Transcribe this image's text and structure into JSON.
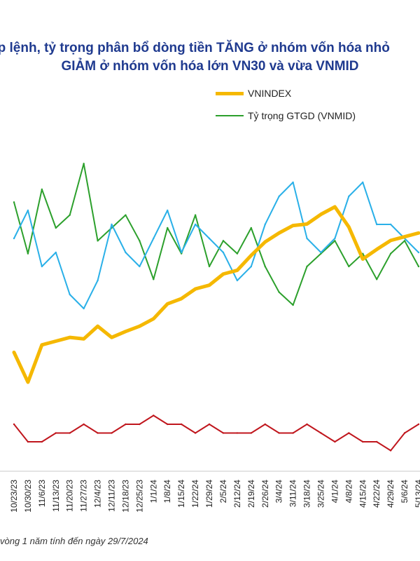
{
  "title": {
    "line1": "ớp lệnh, tỷ trọng phân bổ dòng tiền TĂNG ở nhóm vốn hóa nhỏ",
    "line2": "GIẢM ở nhóm vốn hóa lớn VN30 và vừa VNMID"
  },
  "footnote": "vòng 1 năm tính đến ngày 29/7/2024",
  "colors": {
    "vnindex": "#f5b800",
    "vnmid": "#2ca02c",
    "vn30": "#2ab0e8",
    "smallcap": "#c0161d"
  },
  "chart_data": {
    "type": "line",
    "legend_position": "top-right",
    "grid": false,
    "x": [
      "10/23/23",
      "10/30/23",
      "11/6/23",
      "11/13/23",
      "11/20/23",
      "11/27/23",
      "12/4/23",
      "12/11/23",
      "12/18/23",
      "12/25/23",
      "1/1/24",
      "1/8/24",
      "1/15/24",
      "1/22/24",
      "1/29/24",
      "2/5/24",
      "2/12/24",
      "2/19/24",
      "2/26/24",
      "3/4/24",
      "3/11/24",
      "3/18/24",
      "3/25/24",
      "4/1/24",
      "4/8/24",
      "4/15/24",
      "4/22/24",
      "4/29/24",
      "5/6/24",
      "5/13/24"
    ],
    "series": [
      {
        "name": "VNINDEX",
        "values": [
          1090,
          1050,
          1100,
          1105,
          1110,
          1108,
          1125,
          1110,
          1118,
          1125,
          1135,
          1155,
          1162,
          1175,
          1180,
          1195,
          1200,
          1220,
          1238,
          1250,
          1260,
          1262,
          1275,
          1285,
          1258,
          1215,
          1228,
          1240,
          1245,
          1250
        ]
      },
      {
        "name": "Tỷ trọng GTGD (VNMID)",
        "values": [
          39,
          35,
          40,
          37,
          38,
          42,
          36,
          37,
          38,
          36,
          33,
          37,
          35,
          38,
          34,
          36,
          35,
          37,
          34,
          32,
          31,
          34,
          35,
          36,
          34,
          35,
          33,
          35,
          36,
          34
        ]
      },
      {
        "name": "",
        "values": [
          44,
          46,
          42,
          43,
          40,
          39,
          41,
          45,
          43,
          42,
          44,
          46,
          43,
          45,
          44,
          43,
          41,
          42,
          45,
          47,
          48,
          44,
          43,
          44,
          47,
          48,
          45,
          45,
          44,
          43
        ]
      },
      {
        "name": "",
        "values": [
          14,
          12,
          12,
          13,
          13,
          14,
          13,
          13,
          14,
          14,
          15,
          14,
          14,
          13,
          14,
          13,
          13,
          13,
          14,
          13,
          13,
          14,
          13,
          12,
          13,
          12,
          12,
          11,
          13,
          14
        ]
      }
    ]
  }
}
